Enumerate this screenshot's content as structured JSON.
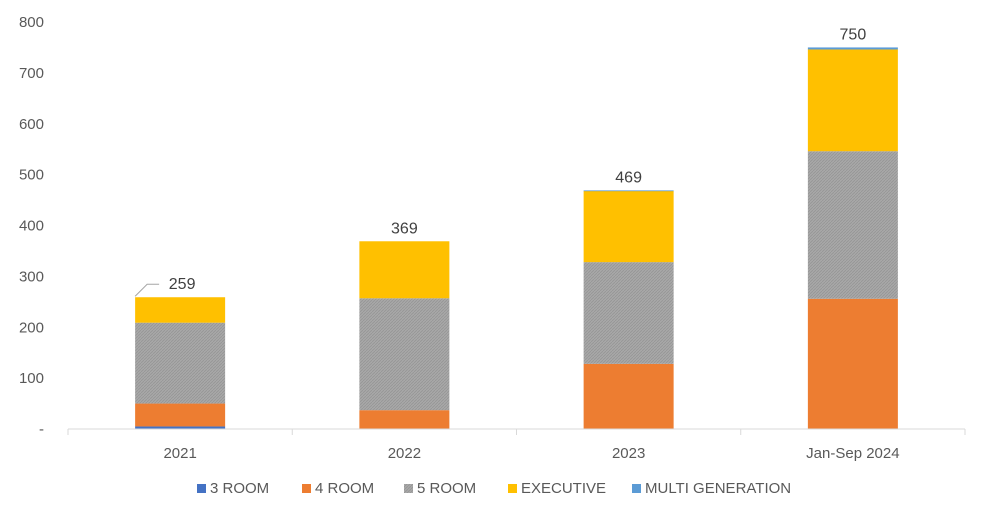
{
  "chart_data": {
    "type": "bar",
    "stacked": true,
    "categories": [
      "2021",
      "2022",
      "2023",
      "Jan-Sep 2024"
    ],
    "y_tick_labels": [
      "-",
      "100",
      "200",
      "300",
      "400",
      "500",
      "600",
      "700",
      "800"
    ],
    "ylim": [
      0,
      800
    ],
    "grid": false,
    "legend_position": "bottom",
    "series": [
      {
        "name": "3 ROOM",
        "color": "#4472C4",
        "values": [
          5,
          0,
          0,
          0
        ]
      },
      {
        "name": "4 ROOM",
        "color": "#ED7D31",
        "values": [
          45,
          37,
          128,
          256
        ]
      },
      {
        "name": "5 ROOM",
        "color": "#A5A5A5",
        "values": [
          159,
          220,
          200,
          290
        ]
      },
      {
        "name": "EXECUTIVE",
        "color": "#FFC000",
        "values": [
          50,
          112,
          140,
          200
        ]
      },
      {
        "name": "MULTI GENERATION",
        "color": "#5B9BD5",
        "values": [
          0,
          0,
          1,
          4
        ]
      }
    ],
    "totals": [
      "259",
      "369",
      "469",
      "750"
    ]
  }
}
